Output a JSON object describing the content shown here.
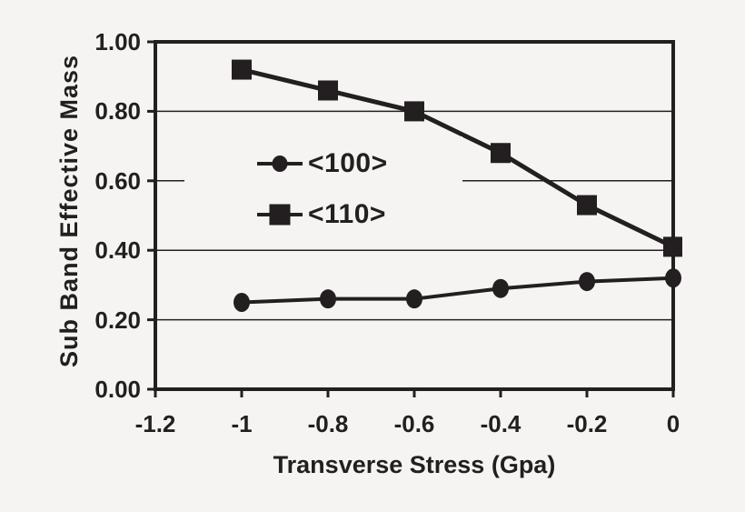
{
  "figure": {
    "background": "#f5f4f2",
    "ink": "#231f20"
  },
  "y_axis": {
    "title": "Sub Band Effective Mass",
    "tick_labels": [
      "1.00",
      "0.80",
      "0.60",
      "0.40",
      "0.20",
      "0.00"
    ]
  },
  "x_axis": {
    "title": "Transverse Stress (Gpa)",
    "tick_labels": [
      "-1.2",
      "-1",
      "-0.8",
      "-0.6",
      "-0.4",
      "-0.2",
      "0"
    ]
  },
  "legend": {
    "items": [
      {
        "label": "<100>",
        "marker": "circle"
      },
      {
        "label": "<110>",
        "marker": "square"
      }
    ]
  },
  "chart_data": {
    "type": "line",
    "x": [
      -1.0,
      -0.8,
      -0.6,
      -0.4,
      -0.2,
      0.0
    ],
    "series": [
      {
        "name": "<100>",
        "marker": "circle",
        "values": [
          0.25,
          0.26,
          0.26,
          0.29,
          0.31,
          0.32
        ]
      },
      {
        "name": "<110>",
        "marker": "square",
        "values": [
          0.92,
          0.86,
          0.8,
          0.68,
          0.53,
          0.41
        ]
      }
    ],
    "title": "",
    "xlabel": "Transverse Stress (Gpa)",
    "ylabel": "Sub Band Effective Mass",
    "xlim": [
      -1.2,
      0.0
    ],
    "ylim": [
      0.0,
      1.0
    ],
    "x_ticks": [
      -1.2,
      -1.0,
      -0.8,
      -0.6,
      -0.4,
      -0.2,
      0.0
    ],
    "y_ticks": [
      0.0,
      0.2,
      0.4,
      0.6,
      0.8,
      1.0
    ],
    "grid": "horizontal",
    "legend_position": "inside-center-left"
  }
}
